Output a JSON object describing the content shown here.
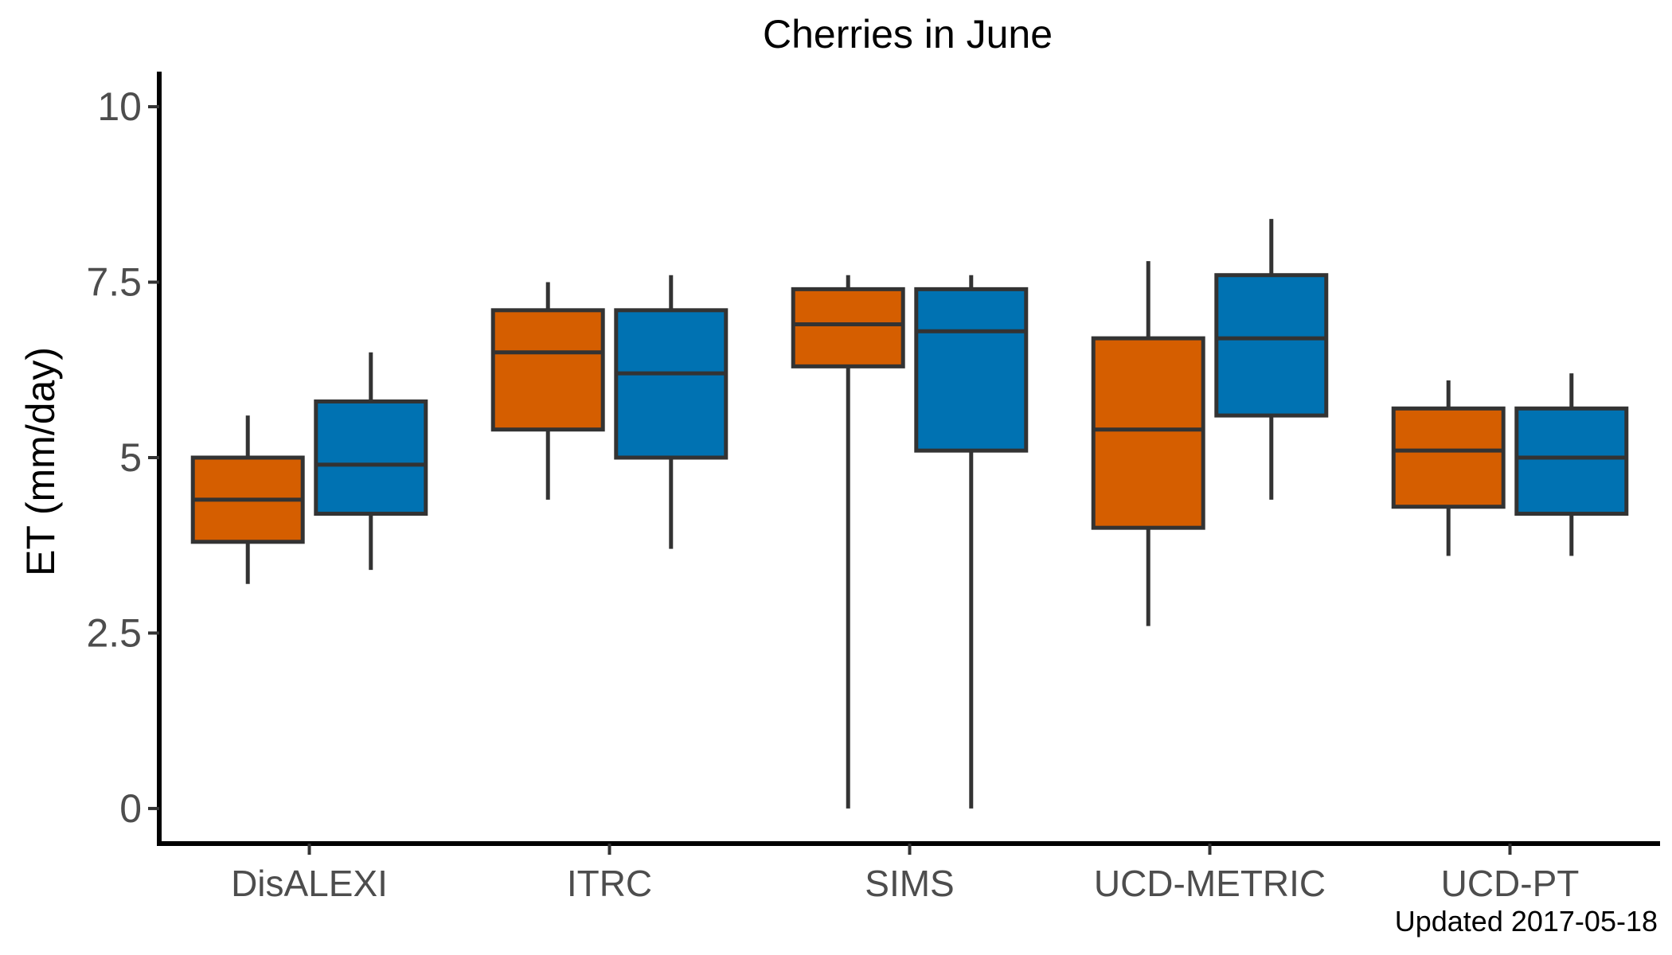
{
  "chart_data": {
    "type": "boxplot",
    "title": "Cherries in June",
    "xlabel": "",
    "ylabel": "ET (mm/day)",
    "caption": "Updated  2017-05-18",
    "ylim": [
      -0.5,
      10.5
    ],
    "yticks": [
      0,
      2.5,
      5,
      7.5,
      10
    ],
    "ytick_labels": [
      "0",
      "2.5",
      "5",
      "7.5",
      "10"
    ],
    "categories": [
      "DisALEXI",
      "ITRC",
      "SIMS",
      "UCD-METRIC",
      "UCD-PT"
    ],
    "grid": false,
    "legend": "none",
    "series": [
      {
        "color": "#d55e00",
        "boxes": [
          {
            "min": 3.2,
            "q1": 3.8,
            "median": 4.4,
            "q3": 5.0,
            "max": 5.6
          },
          {
            "min": 4.4,
            "q1": 5.4,
            "median": 6.5,
            "q3": 7.1,
            "max": 7.5
          },
          {
            "min": 0.0,
            "q1": 6.3,
            "median": 6.9,
            "q3": 7.4,
            "max": 7.6
          },
          {
            "min": 2.6,
            "q1": 4.0,
            "median": 5.4,
            "q3": 6.7,
            "max": 7.8
          },
          {
            "min": 3.6,
            "q1": 4.3,
            "median": 5.1,
            "q3": 5.7,
            "max": 6.1
          }
        ]
      },
      {
        "color": "#0072b2",
        "boxes": [
          {
            "min": 3.4,
            "q1": 4.2,
            "median": 4.9,
            "q3": 5.8,
            "max": 6.5
          },
          {
            "min": 3.7,
            "q1": 5.0,
            "median": 6.2,
            "q3": 7.1,
            "max": 7.6
          },
          {
            "min": 0.0,
            "q1": 5.1,
            "median": 6.8,
            "q3": 7.4,
            "max": 7.6
          },
          {
            "min": 4.4,
            "q1": 5.6,
            "median": 6.7,
            "q3": 7.6,
            "max": 8.4
          },
          {
            "min": 3.6,
            "q1": 4.2,
            "median": 5.0,
            "q3": 5.7,
            "max": 6.2
          }
        ]
      }
    ],
    "colors": {
      "outline": "#333333",
      "axis": "#000000"
    }
  }
}
